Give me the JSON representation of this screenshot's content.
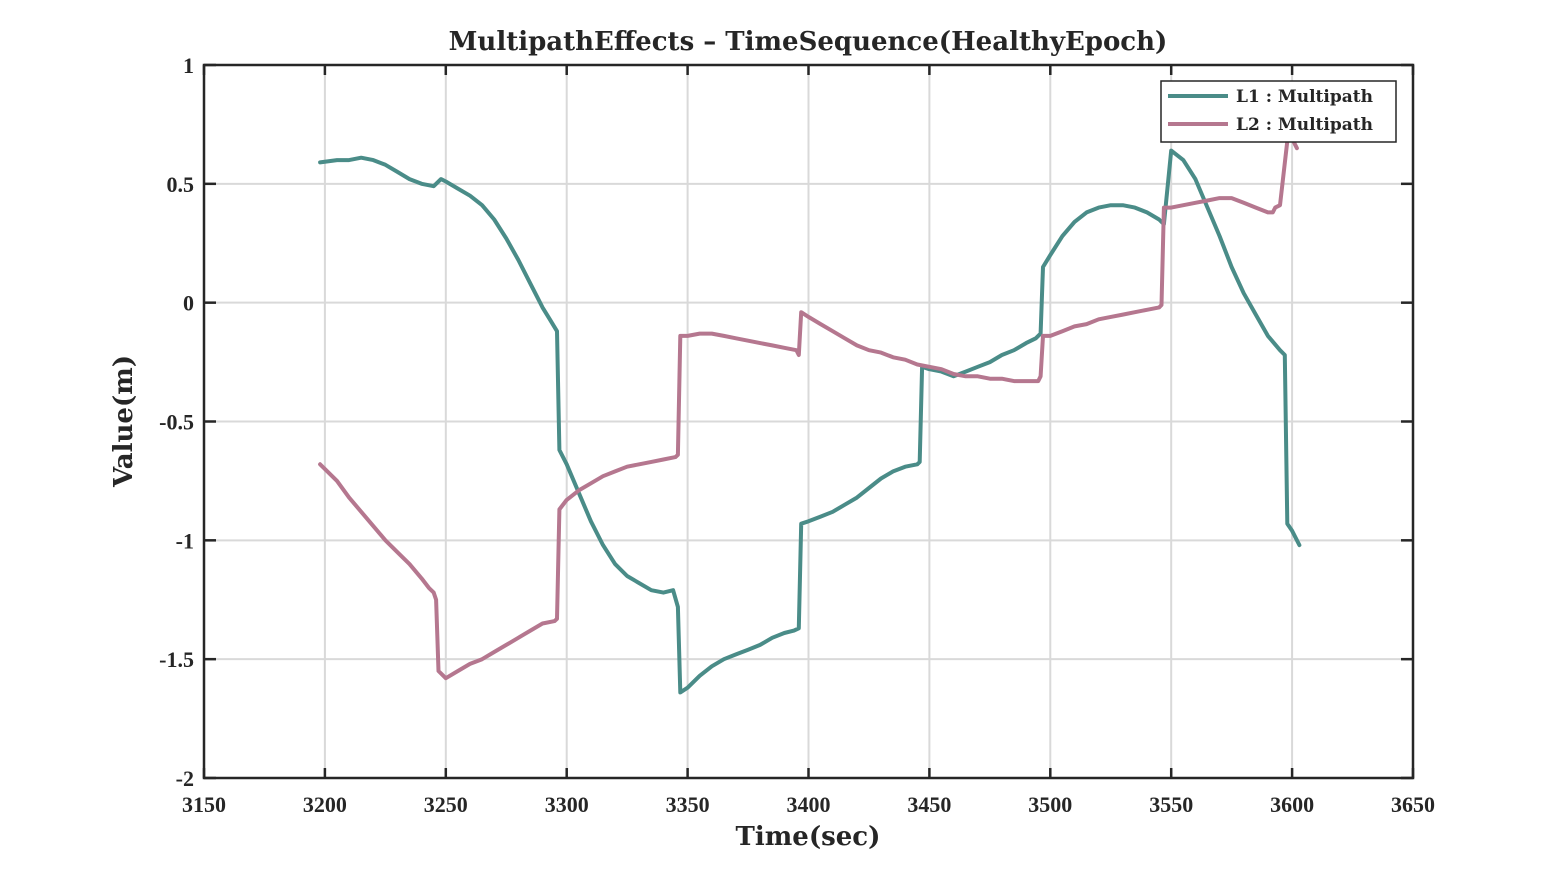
{
  "chart_data": {
    "type": "line",
    "title": "MultipathEffects – TimeSequence(HealthyEpoch)",
    "xlabel": "Time(sec)",
    "ylabel": "Value(m)",
    "xlim": [
      3150,
      3650
    ],
    "ylim": [
      -2,
      1
    ],
    "xticks": [
      3150,
      3200,
      3250,
      3300,
      3350,
      3400,
      3450,
      3500,
      3550,
      3600,
      3650
    ],
    "xtick_labels": [
      "3150",
      "3200",
      "3250",
      "3300",
      "3350",
      "3400",
      "3450",
      "3500",
      "3550",
      "3600",
      "3650"
    ],
    "yticks": [
      1,
      0.5,
      0,
      -0.5,
      -1,
      -1.5,
      -2
    ],
    "ytick_labels": [
      "1",
      "0.5",
      "0",
      "-0.5",
      "-1",
      "-1.5",
      "-2"
    ],
    "grid": true,
    "legend_position": "top-right",
    "series": [
      {
        "name": "L1 : Multipath",
        "color": "#4a8c88",
        "x": [
          3198,
          3205,
          3210,
          3215,
          3220,
          3225,
          3230,
          3235,
          3240,
          3245,
          3248,
          3250,
          3255,
          3260,
          3265,
          3270,
          3275,
          3280,
          3285,
          3288,
          3290,
          3293,
          3296,
          3297,
          3300,
          3305,
          3310,
          3315,
          3320,
          3325,
          3330,
          3335,
          3340,
          3344,
          3346,
          3347,
          3350,
          3355,
          3360,
          3365,
          3370,
          3375,
          3380,
          3385,
          3390,
          3394,
          3396,
          3397,
          3400,
          3405,
          3410,
          3415,
          3420,
          3425,
          3430,
          3435,
          3440,
          3445,
          3446,
          3447,
          3450,
          3455,
          3460,
          3465,
          3470,
          3475,
          3480,
          3485,
          3490,
          3494,
          3496,
          3497,
          3500,
          3505,
          3510,
          3515,
          3520,
          3525,
          3530,
          3535,
          3540,
          3545,
          3547,
          3550,
          3555,
          3560,
          3565,
          3570,
          3575,
          3580,
          3585,
          3590,
          3595,
          3597,
          3598,
          3600,
          3603
        ],
        "y": [
          0.59,
          0.6,
          0.6,
          0.61,
          0.6,
          0.58,
          0.55,
          0.52,
          0.5,
          0.49,
          0.52,
          0.51,
          0.48,
          0.45,
          0.41,
          0.35,
          0.27,
          0.18,
          0.08,
          0.02,
          -0.02,
          -0.07,
          -0.12,
          -0.62,
          -0.68,
          -0.8,
          -0.92,
          -1.02,
          -1.1,
          -1.15,
          -1.18,
          -1.21,
          -1.22,
          -1.21,
          -1.28,
          -1.64,
          -1.62,
          -1.57,
          -1.53,
          -1.5,
          -1.48,
          -1.46,
          -1.44,
          -1.41,
          -1.39,
          -1.38,
          -1.37,
          -0.93,
          -0.92,
          -0.9,
          -0.88,
          -0.85,
          -0.82,
          -0.78,
          -0.74,
          -0.71,
          -0.69,
          -0.68,
          -0.67,
          -0.27,
          -0.28,
          -0.29,
          -0.31,
          -0.29,
          -0.27,
          -0.25,
          -0.22,
          -0.2,
          -0.17,
          -0.15,
          -0.13,
          0.15,
          0.2,
          0.28,
          0.34,
          0.38,
          0.4,
          0.41,
          0.41,
          0.4,
          0.38,
          0.35,
          0.33,
          0.64,
          0.6,
          0.52,
          0.4,
          0.28,
          0.15,
          0.04,
          -0.05,
          -0.14,
          -0.2,
          -0.22,
          -0.93,
          -0.96,
          -1.02
        ]
      },
      {
        "name": "L2 : Multipath",
        "color": "#b5778f",
        "x": [
          3198,
          3205,
          3210,
          3215,
          3220,
          3225,
          3230,
          3235,
          3240,
          3243,
          3245,
          3246,
          3247,
          3250,
          3255,
          3260,
          3265,
          3270,
          3275,
          3280,
          3285,
          3290,
          3295,
          3296,
          3297,
          3300,
          3305,
          3310,
          3315,
          3320,
          3325,
          3330,
          3335,
          3340,
          3345,
          3346,
          3347,
          3350,
          3355,
          3360,
          3365,
          3370,
          3375,
          3380,
          3385,
          3390,
          3395,
          3396,
          3397,
          3400,
          3405,
          3410,
          3415,
          3420,
          3425,
          3430,
          3435,
          3440,
          3445,
          3450,
          3455,
          3460,
          3465,
          3470,
          3475,
          3480,
          3485,
          3490,
          3495,
          3496,
          3497,
          3500,
          3505,
          3510,
          3515,
          3520,
          3525,
          3530,
          3535,
          3540,
          3545,
          3546,
          3547,
          3550,
          3555,
          3560,
          3565,
          3570,
          3575,
          3580,
          3585,
          3590,
          3592,
          3593,
          3595,
          3598,
          3600,
          3602
        ],
        "y": [
          -0.68,
          -0.75,
          -0.82,
          -0.88,
          -0.94,
          -1.0,
          -1.05,
          -1.1,
          -1.16,
          -1.2,
          -1.22,
          -1.25,
          -1.55,
          -1.58,
          -1.55,
          -1.52,
          -1.5,
          -1.47,
          -1.44,
          -1.41,
          -1.38,
          -1.35,
          -1.34,
          -1.33,
          -0.87,
          -0.83,
          -0.79,
          -0.76,
          -0.73,
          -0.71,
          -0.69,
          -0.68,
          -0.67,
          -0.66,
          -0.65,
          -0.64,
          -0.14,
          -0.14,
          -0.13,
          -0.13,
          -0.14,
          -0.15,
          -0.16,
          -0.17,
          -0.18,
          -0.19,
          -0.2,
          -0.22,
          -0.04,
          -0.06,
          -0.09,
          -0.12,
          -0.15,
          -0.18,
          -0.2,
          -0.21,
          -0.23,
          -0.24,
          -0.26,
          -0.27,
          -0.28,
          -0.3,
          -0.31,
          -0.31,
          -0.32,
          -0.32,
          -0.33,
          -0.33,
          -0.33,
          -0.31,
          -0.14,
          -0.14,
          -0.12,
          -0.1,
          -0.09,
          -0.07,
          -0.06,
          -0.05,
          -0.04,
          -0.03,
          -0.02,
          -0.01,
          0.4,
          0.4,
          0.41,
          0.42,
          0.43,
          0.44,
          0.44,
          0.42,
          0.4,
          0.38,
          0.38,
          0.4,
          0.41,
          0.68,
          0.69,
          0.65
        ]
      }
    ]
  }
}
